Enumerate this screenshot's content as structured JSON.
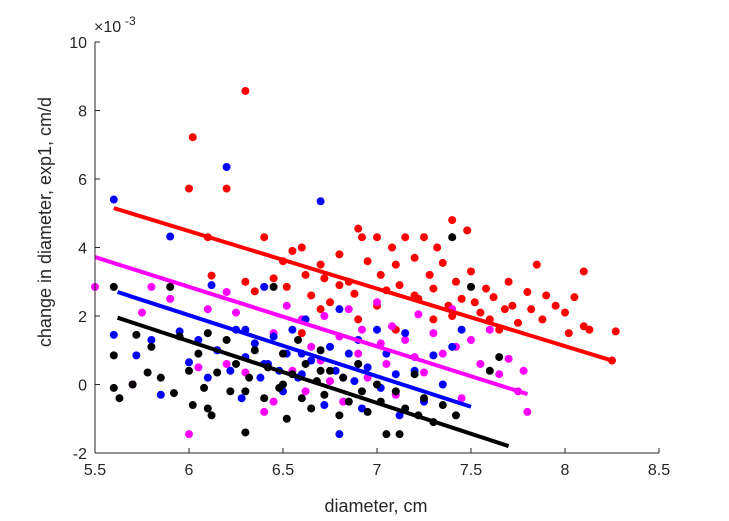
{
  "chart_data": {
    "type": "scatter",
    "xlabel": "diameter, cm",
    "ylabel": "change in diameter, exp1, cm/d",
    "xlim": [
      5.5,
      8.5
    ],
    "ylim": [
      -2,
      10
    ],
    "x_ticks": [
      "5.5",
      "6",
      "6.5",
      "7",
      "7.5",
      "8",
      "8.5"
    ],
    "y_ticks": [
      "-2",
      "0",
      "2",
      "4",
      "6",
      "8",
      "10"
    ],
    "y_exponent_base": "×10",
    "y_exponent_power": "-3",
    "y_scale_factor": 0.001,
    "grid": false,
    "series": [
      {
        "color": "#ff0000",
        "fit": [
          [
            5.6,
            5.15
          ],
          [
            8.25,
            0.7
          ]
        ],
        "points": [
          [
            6.0,
            5.72
          ],
          [
            6.02,
            7.22
          ],
          [
            6.1,
            4.3
          ],
          [
            6.2,
            5.72
          ],
          [
            6.3,
            8.57
          ],
          [
            6.3,
            3.0
          ],
          [
            6.12,
            3.18
          ],
          [
            6.35,
            2.72
          ],
          [
            6.4,
            4.3
          ],
          [
            6.45,
            3.1
          ],
          [
            6.5,
            3.6
          ],
          [
            6.52,
            2.85
          ],
          [
            6.55,
            3.9
          ],
          [
            6.6,
            4.0
          ],
          [
            6.62,
            3.2
          ],
          [
            6.65,
            2.6
          ],
          [
            6.7,
            3.5
          ],
          [
            6.72,
            3.1
          ],
          [
            6.75,
            2.4
          ],
          [
            6.8,
            3.8
          ],
          [
            6.85,
            3.0
          ],
          [
            6.88,
            2.65
          ],
          [
            6.9,
            4.55
          ],
          [
            6.92,
            4.3
          ],
          [
            6.95,
            3.6
          ],
          [
            7.0,
            4.3
          ],
          [
            7.02,
            3.2
          ],
          [
            7.05,
            2.75
          ],
          [
            7.08,
            4.0
          ],
          [
            7.1,
            3.5
          ],
          [
            7.12,
            2.9
          ],
          [
            7.15,
            4.3
          ],
          [
            7.2,
            3.7
          ],
          [
            7.22,
            2.5
          ],
          [
            7.25,
            4.3
          ],
          [
            7.28,
            3.2
          ],
          [
            7.3,
            2.8
          ],
          [
            7.32,
            4.0
          ],
          [
            7.35,
            3.55
          ],
          [
            7.38,
            2.3
          ],
          [
            7.4,
            4.8
          ],
          [
            7.42,
            3.0
          ],
          [
            7.45,
            2.5
          ],
          [
            7.48,
            4.5
          ],
          [
            7.5,
            3.3
          ],
          [
            7.52,
            2.4
          ],
          [
            7.55,
            2.1
          ],
          [
            7.58,
            2.8
          ],
          [
            7.6,
            1.9
          ],
          [
            7.62,
            2.55
          ],
          [
            7.65,
            1.6
          ],
          [
            7.68,
            2.2
          ],
          [
            7.7,
            3.0
          ],
          [
            7.72,
            2.3
          ],
          [
            7.75,
            1.8
          ],
          [
            7.8,
            2.7
          ],
          [
            7.82,
            2.2
          ],
          [
            7.85,
            3.5
          ],
          [
            7.88,
            1.9
          ],
          [
            7.9,
            2.6
          ],
          [
            7.95,
            2.3
          ],
          [
            8.0,
            2.1
          ],
          [
            8.02,
            1.5
          ],
          [
            8.05,
            2.55
          ],
          [
            8.1,
            3.3
          ],
          [
            8.1,
            1.7
          ],
          [
            8.13,
            1.6
          ],
          [
            8.25,
            0.7
          ],
          [
            8.27,
            1.55
          ],
          [
            6.6,
            1.5
          ],
          [
            6.9,
            1.9
          ],
          [
            7.0,
            2.3
          ],
          [
            7.1,
            1.6
          ],
          [
            7.2,
            2.6
          ],
          [
            7.3,
            1.9
          ],
          [
            7.4,
            2.0
          ],
          [
            6.7,
            2.2
          ],
          [
            6.8,
            2.9
          ]
        ]
      },
      {
        "color": "#ff00ff",
        "fit": [
          [
            5.5,
            3.72
          ],
          [
            7.8,
            -0.28
          ]
        ],
        "points": [
          [
            5.5,
            2.85
          ],
          [
            5.75,
            2.1
          ],
          [
            5.8,
            2.85
          ],
          [
            5.9,
            2.5
          ],
          [
            6.0,
            -1.45
          ],
          [
            6.05,
            0.5
          ],
          [
            6.1,
            2.2
          ],
          [
            6.15,
            1.0
          ],
          [
            6.2,
            0.6
          ],
          [
            6.25,
            2.1
          ],
          [
            6.3,
            0.35
          ],
          [
            6.35,
            1.2
          ],
          [
            6.4,
            -0.8
          ],
          [
            6.45,
            1.5
          ],
          [
            6.5,
            0.9
          ],
          [
            6.52,
            2.3
          ],
          [
            6.55,
            0.4
          ],
          [
            6.6,
            1.9
          ],
          [
            6.62,
            -0.2
          ],
          [
            6.65,
            1.1
          ],
          [
            6.7,
            0.7
          ],
          [
            6.72,
            2.0
          ],
          [
            6.75,
            0.1
          ],
          [
            6.8,
            1.4
          ],
          [
            6.82,
            -0.5
          ],
          [
            6.85,
            2.2
          ],
          [
            6.9,
            0.9
          ],
          [
            6.92,
            1.6
          ],
          [
            6.95,
            0.2
          ],
          [
            7.0,
            2.4
          ],
          [
            7.02,
            1.2
          ],
          [
            7.05,
            0.6
          ],
          [
            7.08,
            1.7
          ],
          [
            7.1,
            -0.3
          ],
          [
            7.15,
            1.3
          ],
          [
            7.2,
            0.8
          ],
          [
            7.22,
            2.05
          ],
          [
            7.25,
            0.35
          ],
          [
            7.3,
            1.5
          ],
          [
            7.35,
            0.9
          ],
          [
            7.4,
            2.2
          ],
          [
            7.42,
            1.1
          ],
          [
            7.45,
            -0.4
          ],
          [
            7.5,
            1.3
          ],
          [
            7.55,
            0.6
          ],
          [
            7.6,
            1.6
          ],
          [
            7.65,
            0.3
          ],
          [
            7.7,
            0.75
          ],
          [
            7.75,
            -0.2
          ],
          [
            7.78,
            0.4
          ],
          [
            7.8,
            -0.8
          ],
          [
            5.7,
            0.0
          ],
          [
            6.2,
            2.7
          ],
          [
            6.45,
            -0.5
          ]
        ]
      },
      {
        "color": "#0000ff",
        "fit": [
          [
            5.62,
            2.7
          ],
          [
            7.5,
            -0.65
          ]
        ],
        "points": [
          [
            5.6,
            5.4
          ],
          [
            5.6,
            1.45
          ],
          [
            5.72,
            0.85
          ],
          [
            5.8,
            1.3
          ],
          [
            5.85,
            -0.3
          ],
          [
            5.9,
            4.32
          ],
          [
            5.95,
            1.55
          ],
          [
            6.0,
            0.65
          ],
          [
            6.05,
            1.3
          ],
          [
            6.1,
            0.2
          ],
          [
            6.12,
            2.9
          ],
          [
            6.15,
            1.0
          ],
          [
            6.2,
            6.35
          ],
          [
            6.22,
            0.4
          ],
          [
            6.25,
            1.6
          ],
          [
            6.28,
            -0.4
          ],
          [
            6.3,
            0.8
          ],
          [
            6.35,
            1.2
          ],
          [
            6.38,
            0.2
          ],
          [
            6.4,
            2.85
          ],
          [
            6.42,
            0.6
          ],
          [
            6.45,
            1.4
          ],
          [
            6.5,
            -0.2
          ],
          [
            6.52,
            0.9
          ],
          [
            6.55,
            1.6
          ],
          [
            6.6,
            0.3
          ],
          [
            6.62,
            1.9
          ],
          [
            6.65,
            0.7
          ],
          [
            6.7,
            5.35
          ],
          [
            6.72,
            -0.6
          ],
          [
            6.75,
            1.1
          ],
          [
            6.78,
            0.4
          ],
          [
            6.8,
            2.2
          ],
          [
            6.82,
            0.2
          ],
          [
            6.85,
            0.9
          ],
          [
            6.88,
            0.1
          ],
          [
            6.9,
            1.3
          ],
          [
            6.92,
            -0.7
          ],
          [
            6.95,
            0.5
          ],
          [
            7.0,
            1.6
          ],
          [
            7.02,
            -0.1
          ],
          [
            7.05,
            0.9
          ],
          [
            7.1,
            0.3
          ],
          [
            7.12,
            -0.9
          ],
          [
            7.15,
            1.5
          ],
          [
            7.2,
            0.4
          ],
          [
            7.25,
            -0.5
          ],
          [
            7.3,
            0.85
          ],
          [
            7.35,
            0.0
          ],
          [
            7.4,
            1.1
          ],
          [
            7.45,
            1.6
          ],
          [
            6.8,
            -1.45
          ],
          [
            6.4,
            0.6
          ],
          [
            6.6,
            0.9
          ],
          [
            6.9,
            0.6
          ],
          [
            6.3,
            1.6
          ],
          [
            6.48,
            0.4
          ],
          [
            6.58,
            0.2
          ]
        ]
      },
      {
        "color": "#000000",
        "fit": [
          [
            5.62,
            1.95
          ],
          [
            7.7,
            -1.8
          ]
        ],
        "points": [
          [
            5.6,
            2.85
          ],
          [
            5.6,
            0.85
          ],
          [
            5.6,
            -0.1
          ],
          [
            5.63,
            -0.4
          ],
          [
            5.7,
            0.0
          ],
          [
            5.72,
            1.45
          ],
          [
            5.78,
            0.35
          ],
          [
            5.8,
            1.1
          ],
          [
            5.85,
            0.2
          ],
          [
            5.9,
            2.85
          ],
          [
            5.92,
            -0.25
          ],
          [
            5.95,
            1.4
          ],
          [
            6.0,
            0.4
          ],
          [
            6.02,
            -0.6
          ],
          [
            6.05,
            0.9
          ],
          [
            6.08,
            -0.1
          ],
          [
            6.1,
            1.5
          ],
          [
            6.12,
            -0.9
          ],
          [
            6.15,
            0.35
          ],
          [
            6.2,
            1.3
          ],
          [
            6.22,
            -0.2
          ],
          [
            6.25,
            0.6
          ],
          [
            6.3,
            -1.4
          ],
          [
            6.32,
            0.2
          ],
          [
            6.35,
            1.0
          ],
          [
            6.4,
            -0.4
          ],
          [
            6.42,
            0.5
          ],
          [
            6.45,
            2.85
          ],
          [
            6.48,
            -0.1
          ],
          [
            6.5,
            0.9
          ],
          [
            6.52,
            -1.0
          ],
          [
            6.55,
            0.3
          ],
          [
            6.58,
            1.3
          ],
          [
            6.6,
            -0.4
          ],
          [
            6.62,
            0.6
          ],
          [
            6.65,
            -0.7
          ],
          [
            6.68,
            0.1
          ],
          [
            6.7,
            1.0
          ],
          [
            6.72,
            -0.3
          ],
          [
            6.75,
            0.4
          ],
          [
            6.8,
            -0.9
          ],
          [
            6.82,
            0.2
          ],
          [
            6.85,
            -0.5
          ],
          [
            6.9,
            0.6
          ],
          [
            6.92,
            -0.2
          ],
          [
            6.95,
            -0.8
          ],
          [
            7.0,
            0.0
          ],
          [
            7.02,
            -0.5
          ],
          [
            7.05,
            -1.45
          ],
          [
            7.1,
            -0.2
          ],
          [
            7.12,
            -1.45
          ],
          [
            7.15,
            -0.7
          ],
          [
            7.2,
            0.3
          ],
          [
            7.22,
            -0.9
          ],
          [
            7.25,
            -0.4
          ],
          [
            7.3,
            -1.1
          ],
          [
            7.35,
            -0.6
          ],
          [
            7.4,
            4.3
          ],
          [
            7.42,
            -0.9
          ],
          [
            7.5,
            2.85
          ],
          [
            7.6,
            0.4
          ],
          [
            7.65,
            0.8
          ],
          [
            6.1,
            -0.7
          ],
          [
            6.3,
            -0.2
          ],
          [
            6.5,
            0.0
          ],
          [
            6.7,
            0.4
          ]
        ]
      }
    ]
  }
}
